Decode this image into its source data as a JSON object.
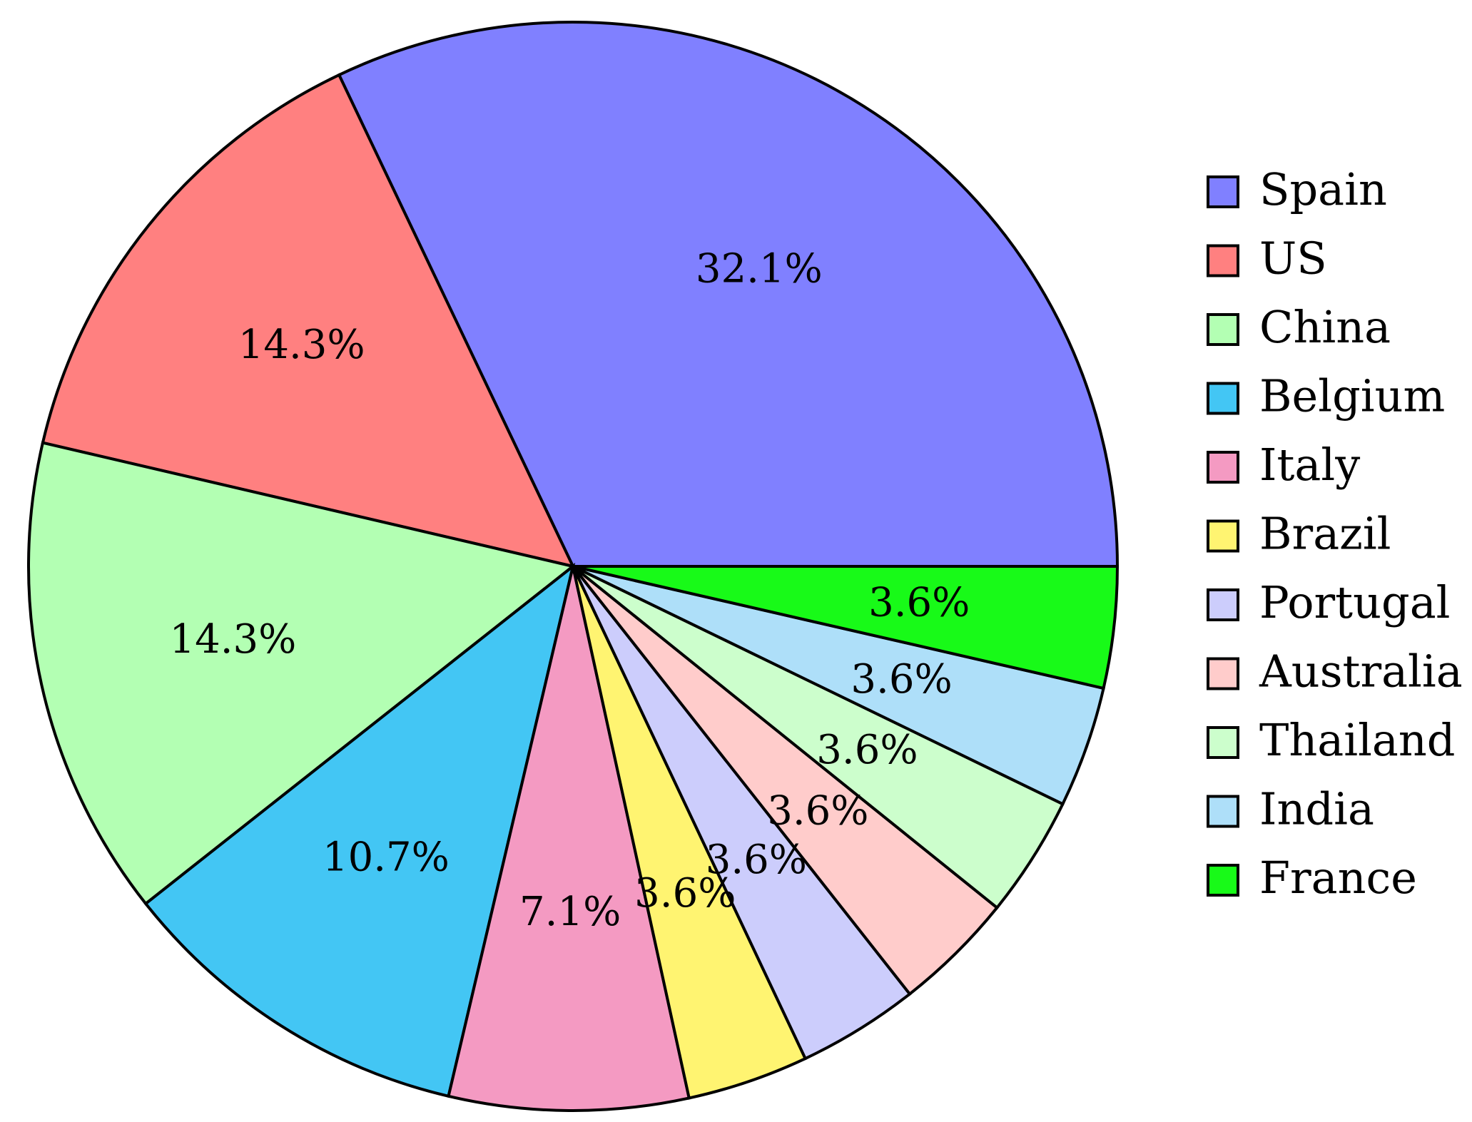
{
  "chart_data": {
    "type": "pie",
    "legend_position": "right",
    "start_angle_deg": 0,
    "direction": "counterclockwise",
    "slices": [
      {
        "label": "Spain",
        "value": 32.1,
        "value_label": "32.1%",
        "color": "#8080ff"
      },
      {
        "label": "US",
        "value": 14.3,
        "value_label": "14.3%",
        "color": "#ff8080"
      },
      {
        "label": "China",
        "value": 14.3,
        "value_label": "14.3%",
        "color": "#b3ffb3"
      },
      {
        "label": "Belgium",
        "value": 10.7,
        "value_label": "10.7%",
        "color": "#43c6f4"
      },
      {
        "label": "Italy",
        "value": 7.1,
        "value_label": "7.1%",
        "color": "#f49ac2"
      },
      {
        "label": "Brazil",
        "value": 3.6,
        "value_label": "3.6%",
        "color": "#fff471"
      },
      {
        "label": "Portugal",
        "value": 3.6,
        "value_label": "3.6%",
        "color": "#cccdfc"
      },
      {
        "label": "Australia",
        "value": 3.6,
        "value_label": "3.6%",
        "color": "#ffcccb"
      },
      {
        "label": "Thailand",
        "value": 3.6,
        "value_label": "3.6%",
        "color": "#ccfecc"
      },
      {
        "label": "India",
        "value": 3.6,
        "value_label": "3.6%",
        "color": "#aedff9"
      },
      {
        "label": "France",
        "value": 3.6,
        "value_label": "3.6%",
        "color": "#18fa18"
      }
    ]
  }
}
